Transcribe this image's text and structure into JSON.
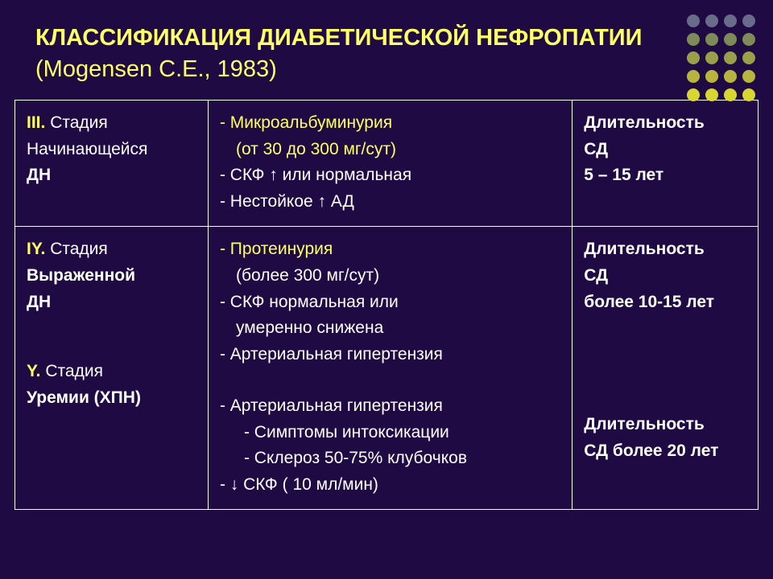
{
  "title": {
    "main": "КЛАССИФИКАЦИЯ ДИАБЕТИЧЕСКОЙ НЕФРОПАТИИ",
    "sub": "(Mogensen C.E., 1983)"
  },
  "theme": {
    "background": "#1f0a44",
    "accent": "#ffff66",
    "text": "#ffffff",
    "border": "#ffffff"
  },
  "dot_palette": {
    "rows": 5,
    "cols": 4,
    "colors": [
      "#6a6a8a",
      "#6a6a8a",
      "#6a6a8a",
      "#6a6a8a",
      "#7e8a58",
      "#7e8a58",
      "#7e8a58",
      "#7e8a58",
      "#9aa04a",
      "#9aa04a",
      "#9aa04a",
      "#9aa04a",
      "#b8b43e",
      "#b8b43e",
      "#b8b43e",
      "#b8b43e",
      "#d7d633",
      "#d7d633",
      "#d7d633",
      "#d7d633"
    ]
  },
  "table": {
    "columns": [
      "stage",
      "characteristics",
      "duration"
    ],
    "col_widths_pct": [
      26,
      49,
      25
    ],
    "rows": [
      {
        "stage": {
          "roman": "III.",
          "text_lines": [
            "Стадия",
            "Начинающейся"
          ],
          "bold_line": "ДН"
        },
        "characteristics": {
          "lead": "- Микроальбуминурия",
          "lead_sub": "(от 30 до 300 мг/сут)",
          "items": [
            "- СКФ  ↑ или нормальная",
            "- Нестойкое ↑ АД"
          ]
        },
        "duration": {
          "l1": "Длительность",
          "l2": "СД",
          "l3": "5 – 15 лет"
        }
      },
      {
        "stage": {
          "partA": {
            "roman": "IY.",
            "text_lines": [
              "Стадия"
            ],
            "bold1": "Выраженной",
            "bold2": "ДН"
          },
          "partB": {
            "roman": "Y.",
            "text_lines": [
              "Стадия"
            ],
            "bold1": "Уремии (ХПН)"
          }
        },
        "characteristics": {
          "leadA": "- Протеинурия",
          "leadA_sub": "(более 300 мг/сут)",
          "itemsA": [
            "- СКФ нормальная или",
            "умеренно снижена",
            "- Артериальная гипертензия"
          ],
          "itemsB": [
            "- Артериальная гипертензия",
            "- Симптомы интоксикации",
            "- Склероз 50-75% клубочков",
            "- ↓ СКФ ( 10 мл/мин)"
          ]
        },
        "duration": {
          "d1_l1": "Длительность",
          "d1_l2": "СД",
          "d1_l3": "более 10-15 лет",
          "d2_l1": "Длительность",
          "d2_l2": "СД  более 20 лет"
        }
      }
    ]
  }
}
